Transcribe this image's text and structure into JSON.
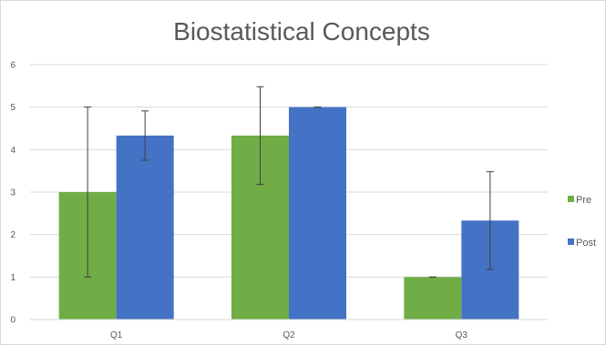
{
  "chart_data": {
    "type": "bar",
    "title": "Biostatistical Concepts",
    "categories": [
      "Q1",
      "Q2",
      "Q3"
    ],
    "series": [
      {
        "name": "Pre",
        "color": "#70ad47",
        "values": [
          3,
          4.33,
          1
        ],
        "error": [
          2,
          1.15,
          0
        ]
      },
      {
        "name": "Post",
        "color": "#4472c4",
        "values": [
          4.33,
          5,
          2.33
        ],
        "error": [
          0.58,
          0,
          1.15
        ]
      }
    ],
    "ylim": [
      0,
      6
    ],
    "yticks": [
      "0",
      "1",
      "2",
      "3",
      "4",
      "5",
      "6"
    ],
    "grid": true,
    "legend_position": "right"
  }
}
